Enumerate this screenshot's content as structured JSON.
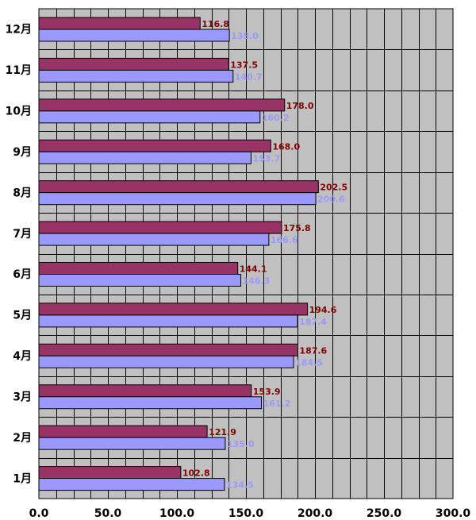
{
  "chart_data": {
    "type": "bar",
    "orientation": "horizontal",
    "categories": [
      "1月",
      "2月",
      "3月",
      "4月",
      "5月",
      "6月",
      "7月",
      "8月",
      "9月",
      "10月",
      "11月",
      "12月"
    ],
    "series": [
      {
        "values": [
          102.8,
          121.9,
          153.9,
          187.6,
          194.6,
          144.1,
          175.8,
          202.5,
          168.0,
          178.0,
          137.5,
          116.8
        ],
        "color": "#993366",
        "label_color": "#800000"
      },
      {
        "values": [
          134.5,
          135.0,
          161.2,
          184.5,
          187.4,
          146.3,
          166.6,
          200.6,
          153.7,
          160.2,
          140.7,
          138.0
        ],
        "color": "#9999ff",
        "label_color": "#9999ff"
      }
    ],
    "xlim": [
      0,
      300
    ],
    "xticks": [
      "0.0",
      "50.0",
      "100.0",
      "150.0",
      "200.0",
      "250.0",
      "300.0"
    ],
    "grid": true,
    "plot_background": "#c0c0c0",
    "title": "",
    "xlabel": "",
    "ylabel": ""
  }
}
